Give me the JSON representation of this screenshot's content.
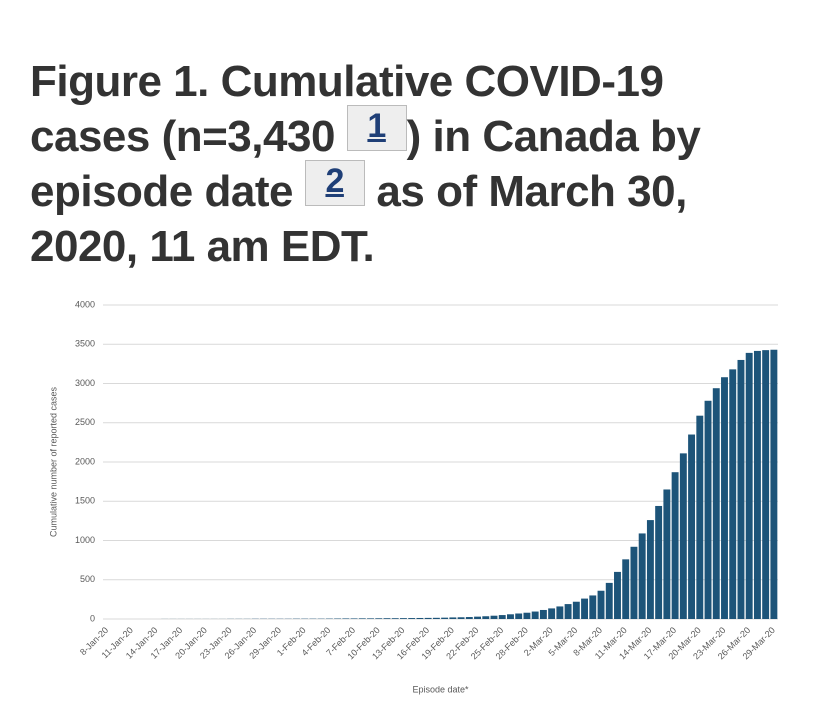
{
  "heading": {
    "parts": [
      "Figure 1. Cumulative COVID-19 cases (n=3,430 ",
      ") in Canada by episode date ",
      " as of March 30, 2020, 11 am EDT."
    ],
    "footnotes": [
      "1",
      "2"
    ]
  },
  "chart_data": {
    "type": "bar",
    "categories": [
      "8-Jan-20",
      null,
      null,
      "11-Jan-20",
      null,
      null,
      "14-Jan-20",
      null,
      null,
      "17-Jan-20",
      null,
      null,
      "20-Jan-20",
      null,
      null,
      "23-Jan-20",
      null,
      null,
      "26-Jan-20",
      null,
      null,
      "29-Jan-20",
      null,
      null,
      "1-Feb-20",
      null,
      null,
      "4-Feb-20",
      null,
      null,
      "7-Feb-20",
      null,
      null,
      "10-Feb-20",
      null,
      null,
      "13-Feb-20",
      null,
      null,
      "16-Feb-20",
      null,
      null,
      "19-Feb-20",
      null,
      null,
      "22-Feb-20",
      null,
      null,
      "25-Feb-20",
      null,
      null,
      "28-Feb-20",
      null,
      null,
      "2-Mar-20",
      null,
      null,
      "5-Mar-20",
      null,
      null,
      "8-Mar-20",
      null,
      null,
      "11-Mar-20",
      null,
      null,
      "14-Mar-20",
      null,
      null,
      "17-Mar-20",
      null,
      null,
      "20-Mar-20",
      null,
      null,
      "23-Mar-20",
      null,
      null,
      "26-Mar-20",
      null,
      null,
      "29-Mar-20"
    ],
    "values": [
      0,
      0,
      0,
      0,
      0,
      0,
      0,
      1,
      1,
      1,
      1,
      1,
      1,
      1,
      1,
      2,
      2,
      2,
      3,
      3,
      3,
      3,
      3,
      4,
      4,
      4,
      4,
      5,
      6,
      7,
      7,
      8,
      8,
      9,
      10,
      10,
      11,
      12,
      13,
      14,
      15,
      17,
      20,
      22,
      25,
      30,
      35,
      42,
      50,
      60,
      70,
      80,
      95,
      115,
      135,
      160,
      190,
      220,
      260,
      300,
      360,
      460,
      600,
      760,
      920,
      1090,
      1260,
      1440,
      1650,
      1870,
      2110,
      2350,
      2590,
      2780,
      2940,
      3080,
      3180,
      3300,
      3390,
      3415,
      3425,
      3430
    ],
    "color": "#1d5479",
    "xlabel": "Episode date*",
    "ylabel": "Cumulative number of reported cases",
    "ylim": [
      0,
      4000
    ],
    "yticks": [
      0,
      500,
      1000,
      1500,
      2000,
      2500,
      3000,
      3500,
      4000
    ],
    "grid": true
  }
}
